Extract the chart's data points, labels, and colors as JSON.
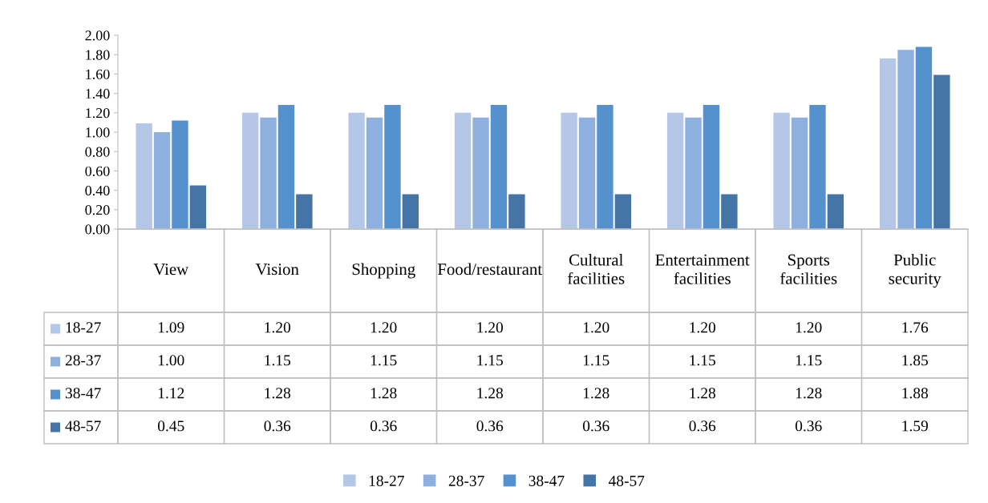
{
  "chart_data": {
    "type": "bar",
    "categories": [
      "View",
      "Vision",
      "Shopping",
      "Food/restaurant",
      "Cultural facilities",
      "Entertainment facilities",
      "Sports facilities",
      "Public security"
    ],
    "series": [
      {
        "name": "18-27",
        "color": "#b4c7e7",
        "values": [
          1.09,
          1.2,
          1.2,
          1.2,
          1.2,
          1.2,
          1.2,
          1.76
        ],
        "value_labels": [
          "1.09",
          "1.20",
          "1.20",
          "1.20",
          "1.20",
          "1.20",
          "1.20",
          "1.76"
        ]
      },
      {
        "name": "28-37",
        "color": "#8eb0de",
        "values": [
          1.0,
          1.15,
          1.15,
          1.15,
          1.15,
          1.15,
          1.15,
          1.85
        ],
        "value_labels": [
          "1.00",
          "1.15",
          "1.15",
          "1.15",
          "1.15",
          "1.15",
          "1.15",
          "1.85"
        ]
      },
      {
        "name": "38-47",
        "color": "#5591cc",
        "values": [
          1.12,
          1.28,
          1.28,
          1.28,
          1.28,
          1.28,
          1.28,
          1.88
        ],
        "value_labels": [
          "1.12",
          "1.28",
          "1.28",
          "1.28",
          "1.28",
          "1.28",
          "1.28",
          "1.88"
        ]
      },
      {
        "name": "48-57",
        "color": "#4574a6",
        "values": [
          0.45,
          0.36,
          0.36,
          0.36,
          0.36,
          0.36,
          0.36,
          1.59
        ],
        "value_labels": [
          "0.45",
          "0.36",
          "0.36",
          "0.36",
          "0.36",
          "0.36",
          "0.36",
          "1.59"
        ]
      }
    ],
    "ylim": [
      0,
      2
    ],
    "yticks": [
      {
        "value": 0,
        "label": "0.00"
      },
      {
        "value": 0.2,
        "label": "0.20"
      },
      {
        "value": 0.4,
        "label": "0.40"
      },
      {
        "value": 0.6,
        "label": "0.60"
      },
      {
        "value": 0.8,
        "label": "0.80"
      },
      {
        "value": 1,
        "label": "1.00"
      },
      {
        "value": 1.2,
        "label": "1.20"
      },
      {
        "value": 1.4,
        "label": "1.40"
      },
      {
        "value": 1.6,
        "label": "1.60"
      },
      {
        "value": 1.8,
        "label": "1.80"
      },
      {
        "value": 2,
        "label": "2.00"
      }
    ],
    "grid": false,
    "legend": "bottom"
  }
}
